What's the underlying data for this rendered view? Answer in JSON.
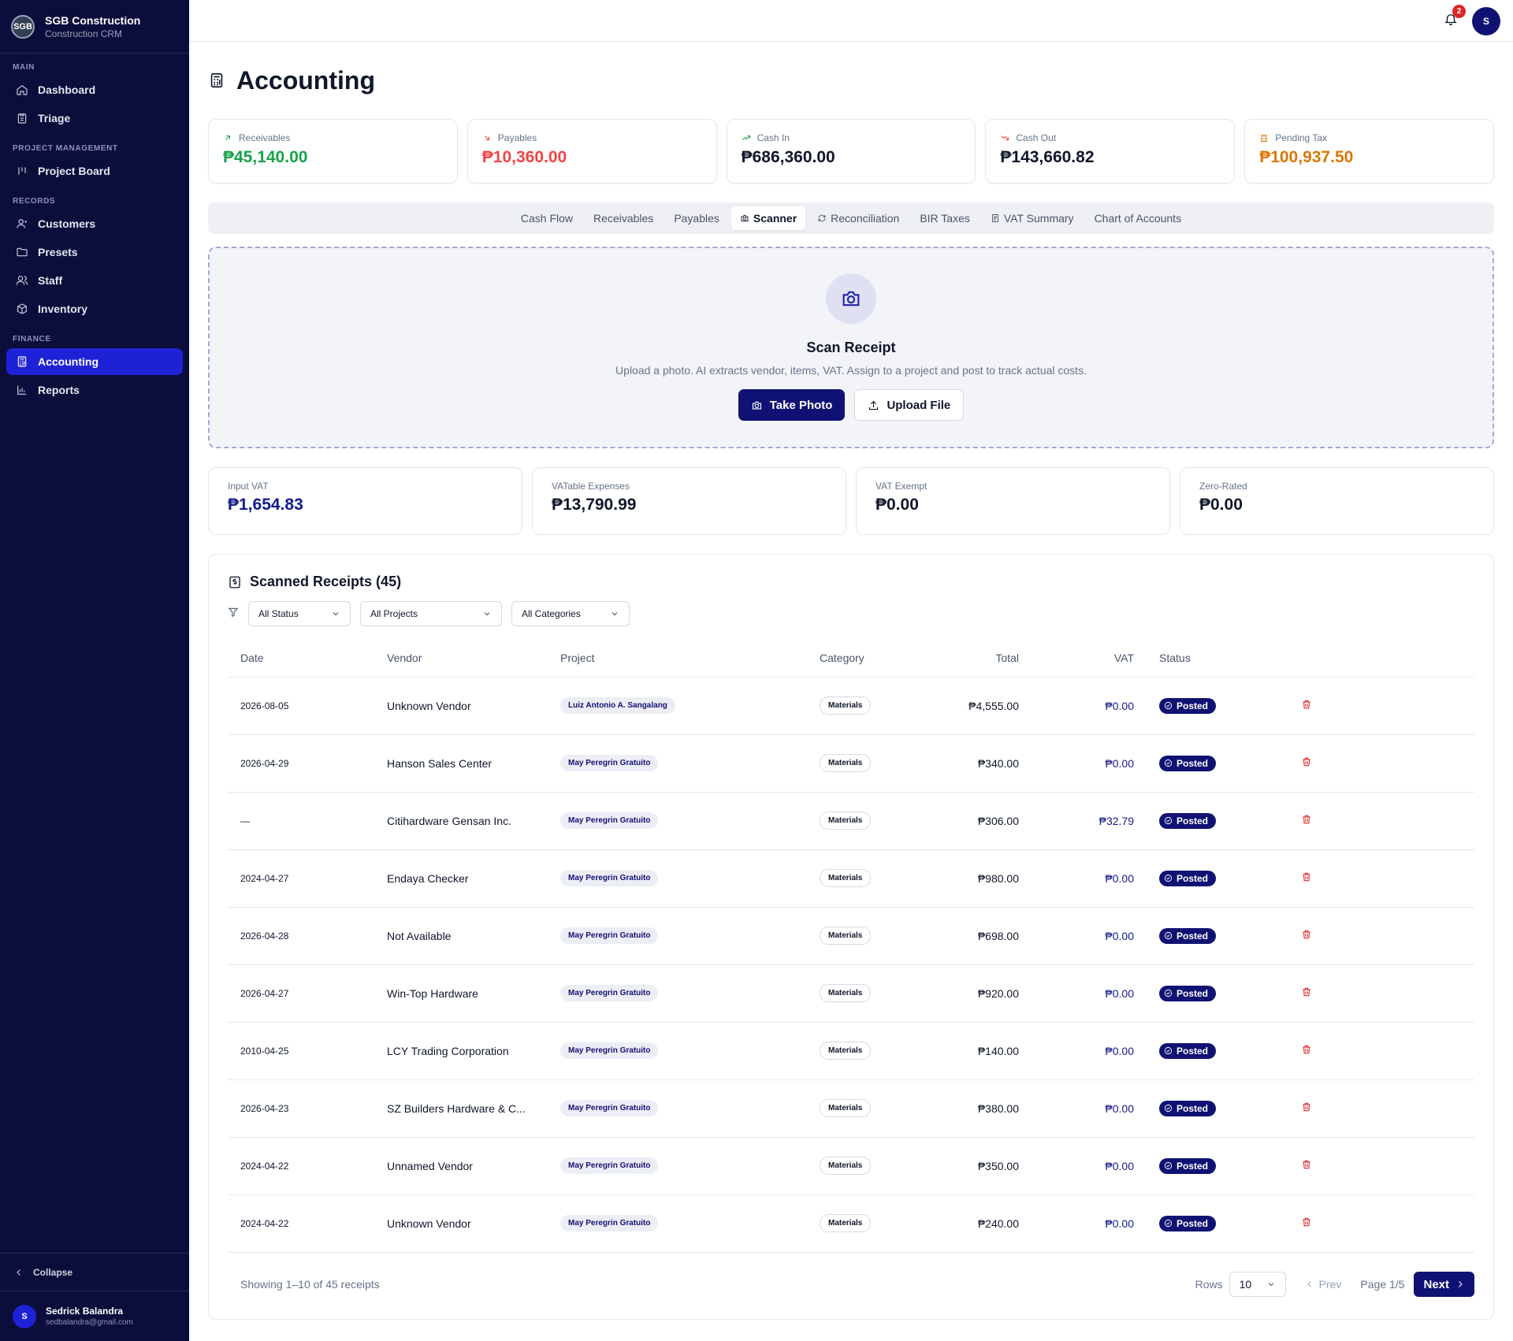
{
  "brand": {
    "logo_text": "SGB",
    "name": "SGB Construction",
    "subtitle": "Construction CRM"
  },
  "sidebar": {
    "sections": [
      {
        "label": "MAIN",
        "items": [
          {
            "label": "Dashboard",
            "icon": "home-icon"
          },
          {
            "label": "Triage",
            "icon": "clipboard-icon"
          }
        ]
      },
      {
        "label": "PROJECT MANAGEMENT",
        "items": [
          {
            "label": "Project Board",
            "icon": "kanban-icon"
          }
        ]
      },
      {
        "label": "RECORDS",
        "items": [
          {
            "label": "Customers",
            "icon": "user-icon"
          },
          {
            "label": "Presets",
            "icon": "folder-icon"
          },
          {
            "label": "Staff",
            "icon": "users-icon"
          },
          {
            "label": "Inventory",
            "icon": "box-icon"
          }
        ]
      },
      {
        "label": "FINANCE",
        "items": [
          {
            "label": "Accounting",
            "icon": "calculator-icon",
            "active": true
          },
          {
            "label": "Reports",
            "icon": "bar-chart-icon"
          }
        ]
      }
    ],
    "collapse_label": "Collapse",
    "user": {
      "initial": "S",
      "name": "Sedrick Balandra",
      "email": "sedbalandra@gmail.com"
    }
  },
  "topbar": {
    "notification_count": "2",
    "avatar_initial": "S"
  },
  "page": {
    "title": "Accounting"
  },
  "kpis": [
    {
      "label": "Receivables",
      "value": "₱45,140.00",
      "color": "#16a34a",
      "icon": "arrow-up-right-icon"
    },
    {
      "label": "Payables",
      "value": "₱10,360.00",
      "color": "#ef4444",
      "icon": "arrow-down-right-icon"
    },
    {
      "label": "Cash In",
      "value": "₱686,360.00",
      "color": "#0f172a",
      "icon": "trending-up-icon"
    },
    {
      "label": "Cash Out",
      "value": "₱143,660.82",
      "color": "#0f172a",
      "icon": "trending-down-icon"
    },
    {
      "label": "Pending Tax",
      "value": "₱100,937.50",
      "color": "#d97706",
      "icon": "building-icon"
    }
  ],
  "tabs": [
    {
      "label": "Cash Flow"
    },
    {
      "label": "Receivables"
    },
    {
      "label": "Payables"
    },
    {
      "label": "Scanner",
      "icon": "camera-icon",
      "active": true
    },
    {
      "label": "Reconciliation",
      "icon": "refresh-icon"
    },
    {
      "label": "BIR Taxes"
    },
    {
      "label": "VAT Summary",
      "icon": "receipt-icon"
    },
    {
      "label": "Chart of Accounts"
    }
  ],
  "scanner": {
    "title": "Scan Receipt",
    "subtitle": "Upload a photo. AI extracts vendor, items, VAT. Assign to a project and post to track actual costs.",
    "take_photo": "Take Photo",
    "upload_file": "Upload File"
  },
  "vat_cards": [
    {
      "label": "Input VAT",
      "value": "₱1,654.83"
    },
    {
      "label": "VATable Expenses",
      "value": "₱13,790.99"
    },
    {
      "label": "VAT Exempt",
      "value": "₱0.00"
    },
    {
      "label": "Zero-Rated",
      "value": "₱0.00"
    }
  ],
  "receipts": {
    "title": "Scanned Receipts (45)",
    "filters": {
      "status": "All Status",
      "projects": "All Projects",
      "categories": "All Categories"
    },
    "columns": {
      "date": "Date",
      "vendor": "Vendor",
      "project": "Project",
      "category": "Category",
      "total": "Total",
      "vat": "VAT",
      "status": "Status"
    },
    "rows": [
      {
        "date": "2026-08-05",
        "vendor": "Unknown Vendor",
        "project": "Luiz Antonio A. Sangalang",
        "category": "Materials",
        "total": "₱4,555.00",
        "vat": "₱0.00",
        "status": "Posted"
      },
      {
        "date": "2026-04-29",
        "vendor": "Hanson Sales Center",
        "project": "May Peregrin Gratuito",
        "category": "Materials",
        "total": "₱340.00",
        "vat": "₱0.00",
        "status": "Posted"
      },
      {
        "date": "—",
        "vendor": "Citihardware Gensan Inc.",
        "project": "May Peregrin Gratuito",
        "category": "Materials",
        "total": "₱306.00",
        "vat": "₱32.79",
        "status": "Posted"
      },
      {
        "date": "2024-04-27",
        "vendor": "Endaya Checker",
        "project": "May Peregrin Gratuito",
        "category": "Materials",
        "total": "₱980.00",
        "vat": "₱0.00",
        "status": "Posted"
      },
      {
        "date": "2026-04-28",
        "vendor": "Not Available",
        "project": "May Peregrin Gratuito",
        "category": "Materials",
        "total": "₱698.00",
        "vat": "₱0.00",
        "status": "Posted"
      },
      {
        "date": "2026-04-27",
        "vendor": "Win-Top Hardware",
        "project": "May Peregrin Gratuito",
        "category": "Materials",
        "total": "₱920.00",
        "vat": "₱0.00",
        "status": "Posted"
      },
      {
        "date": "2010-04-25",
        "vendor": "LCY Trading Corporation",
        "project": "May Peregrin Gratuito",
        "category": "Materials",
        "total": "₱140.00",
        "vat": "₱0.00",
        "status": "Posted"
      },
      {
        "date": "2026-04-23",
        "vendor": "SZ Builders Hardware & C...",
        "project": "May Peregrin Gratuito",
        "category": "Materials",
        "total": "₱380.00",
        "vat": "₱0.00",
        "status": "Posted"
      },
      {
        "date": "2024-04-22",
        "vendor": "Unnamed Vendor",
        "project": "May Peregrin Gratuito",
        "category": "Materials",
        "total": "₱350.00",
        "vat": "₱0.00",
        "status": "Posted"
      },
      {
        "date": "2024-04-22",
        "vendor": "Unknown Vendor",
        "project": "May Peregrin Gratuito",
        "category": "Materials",
        "total": "₱240.00",
        "vat": "₱0.00",
        "status": "Posted"
      }
    ],
    "pagination": {
      "info": "Showing 1–10 of 45 receipts",
      "rows_label": "Rows",
      "rows_value": "10",
      "prev": "Prev",
      "page": "Page 1/5",
      "next": "Next"
    }
  }
}
